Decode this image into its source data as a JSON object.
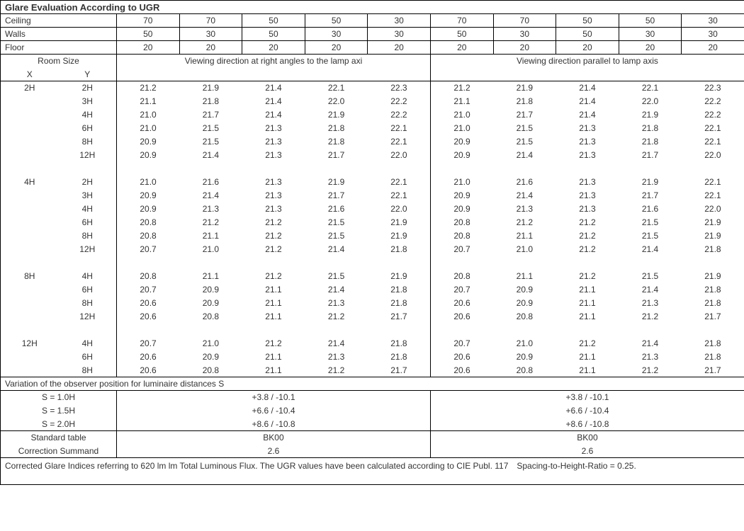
{
  "title": "Glare Evaluation According to UGR",
  "header_labels": {
    "ceiling": "Ceiling",
    "walls": "Walls",
    "floor": "Floor",
    "room_size": "Room Size",
    "x": "X",
    "y": "Y",
    "dir_right": "Viewing direction at right angles to the lamp axi",
    "dir_parallel": "Viewing direction parallel to lamp axis"
  },
  "columns": {
    "ceiling": [
      "70",
      "70",
      "50",
      "50",
      "30",
      "70",
      "70",
      "50",
      "50",
      "30"
    ],
    "walls": [
      "50",
      "30",
      "50",
      "30",
      "30",
      "50",
      "30",
      "50",
      "30",
      "30"
    ],
    "floor": [
      "20",
      "20",
      "20",
      "20",
      "20",
      "20",
      "20",
      "20",
      "20",
      "20"
    ]
  },
  "groups": [
    {
      "x": "2H",
      "rows": [
        {
          "y": "2H",
          "v": [
            "21.2",
            "21.9",
            "21.4",
            "22.1",
            "22.3",
            "21.2",
            "21.9",
            "21.4",
            "22.1",
            "22.3"
          ]
        },
        {
          "y": "3H",
          "v": [
            "21.1",
            "21.8",
            "21.4",
            "22.0",
            "22.2",
            "21.1",
            "21.8",
            "21.4",
            "22.0",
            "22.2"
          ]
        },
        {
          "y": "4H",
          "v": [
            "21.0",
            "21.7",
            "21.4",
            "21.9",
            "22.2",
            "21.0",
            "21.7",
            "21.4",
            "21.9",
            "22.2"
          ]
        },
        {
          "y": "6H",
          "v": [
            "21.0",
            "21.5",
            "21.3",
            "21.8",
            "22.1",
            "21.0",
            "21.5",
            "21.3",
            "21.8",
            "22.1"
          ]
        },
        {
          "y": "8H",
          "v": [
            "20.9",
            "21.5",
            "21.3",
            "21.8",
            "22.1",
            "20.9",
            "21.5",
            "21.3",
            "21.8",
            "22.1"
          ]
        },
        {
          "y": "12H",
          "v": [
            "20.9",
            "21.4",
            "21.3",
            "21.7",
            "22.0",
            "20.9",
            "21.4",
            "21.3",
            "21.7",
            "22.0"
          ]
        }
      ]
    },
    {
      "x": "4H",
      "rows": [
        {
          "y": "2H",
          "v": [
            "21.0",
            "21.6",
            "21.3",
            "21.9",
            "22.1",
            "21.0",
            "21.6",
            "21.3",
            "21.9",
            "22.1"
          ]
        },
        {
          "y": "3H",
          "v": [
            "20.9",
            "21.4",
            "21.3",
            "21.7",
            "22.1",
            "20.9",
            "21.4",
            "21.3",
            "21.7",
            "22.1"
          ]
        },
        {
          "y": "4H",
          "v": [
            "20.9",
            "21.3",
            "21.3",
            "21.6",
            "22.0",
            "20.9",
            "21.3",
            "21.3",
            "21.6",
            "22.0"
          ]
        },
        {
          "y": "6H",
          "v": [
            "20.8",
            "21.2",
            "21.2",
            "21.5",
            "21.9",
            "20.8",
            "21.2",
            "21.2",
            "21.5",
            "21.9"
          ]
        },
        {
          "y": "8H",
          "v": [
            "20.8",
            "21.1",
            "21.2",
            "21.5",
            "21.9",
            "20.8",
            "21.1",
            "21.2",
            "21.5",
            "21.9"
          ]
        },
        {
          "y": "12H",
          "v": [
            "20.7",
            "21.0",
            "21.2",
            "21.4",
            "21.8",
            "20.7",
            "21.0",
            "21.2",
            "21.4",
            "21.8"
          ]
        }
      ]
    },
    {
      "x": "8H",
      "rows": [
        {
          "y": "4H",
          "v": [
            "20.8",
            "21.1",
            "21.2",
            "21.5",
            "21.9",
            "20.8",
            "21.1",
            "21.2",
            "21.5",
            "21.9"
          ]
        },
        {
          "y": "6H",
          "v": [
            "20.7",
            "20.9",
            "21.1",
            "21.4",
            "21.8",
            "20.7",
            "20.9",
            "21.1",
            "21.4",
            "21.8"
          ]
        },
        {
          "y": "8H",
          "v": [
            "20.6",
            "20.9",
            "21.1",
            "21.3",
            "21.8",
            "20.6",
            "20.9",
            "21.1",
            "21.3",
            "21.8"
          ]
        },
        {
          "y": "12H",
          "v": [
            "20.6",
            "20.8",
            "21.1",
            "21.2",
            "21.7",
            "20.6",
            "20.8",
            "21.1",
            "21.2",
            "21.7"
          ]
        }
      ]
    },
    {
      "x": "12H",
      "rows": [
        {
          "y": "4H",
          "v": [
            "20.7",
            "21.0",
            "21.2",
            "21.4",
            "21.8",
            "20.7",
            "21.0",
            "21.2",
            "21.4",
            "21.8"
          ]
        },
        {
          "y": "6H",
          "v": [
            "20.6",
            "20.9",
            "21.1",
            "21.3",
            "21.8",
            "20.6",
            "20.9",
            "21.1",
            "21.3",
            "21.8"
          ]
        },
        {
          "y": "8H",
          "v": [
            "20.6",
            "20.8",
            "21.1",
            "21.2",
            "21.7",
            "20.6",
            "20.8",
            "21.1",
            "21.2",
            "21.7"
          ]
        }
      ]
    }
  ],
  "variation_title": "Variation of the observer position for luminaire distances S",
  "variation": [
    {
      "label": "S = 1.0H",
      "left": "+3.8 / -10.1",
      "right": "+3.8 / -10.1"
    },
    {
      "label": "S = 1.5H",
      "left": "+6.6 / -10.4",
      "right": "+6.6 / -10.4"
    },
    {
      "label": "S = 2.0H",
      "left": "+8.6 / -10.8",
      "right": "+8.6 / -10.8"
    }
  ],
  "standard": {
    "label1": "Standard table",
    "label2": "Correction Summand",
    "left_table": "BK00",
    "left_corr": "2.6",
    "right_table": "BK00",
    "right_corr": "2.6"
  },
  "footnote": "Corrected Glare Indices referring to 620 lm lm Total Luminous Flux. The UGR values have been calculated according to CIE Publ. 117 Spacing-to-Height-Ratio = 0.25."
}
